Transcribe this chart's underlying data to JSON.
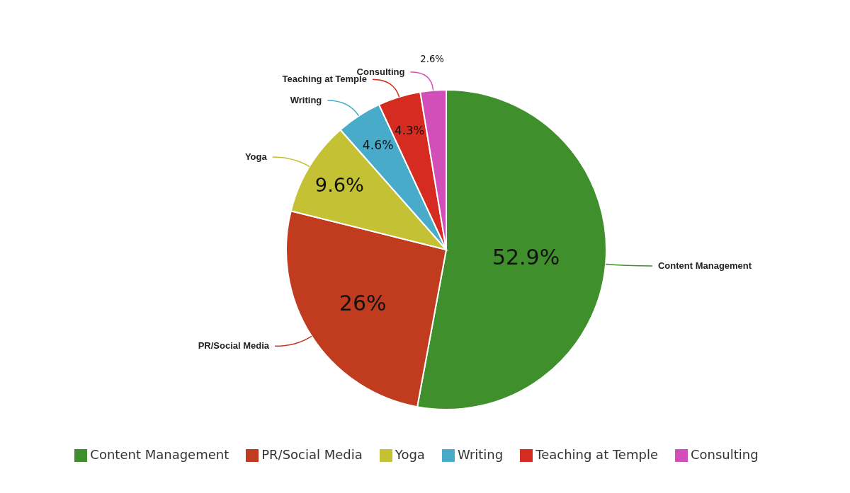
{
  "chart_data": {
    "type": "pie",
    "categories": [
      "Content Management",
      "PR/Social Media",
      "Yoga",
      "Writing",
      "Teaching at Temple",
      "Consulting"
    ],
    "values": [
      52.9,
      26,
      9.6,
      4.6,
      4.3,
      2.6
    ],
    "value_labels": [
      "52.9%",
      "26%",
      "9.6%",
      "4.6%",
      "4.3%",
      "2.6%"
    ],
    "colors": [
      "#3f8f2c",
      "#c13b1f",
      "#c4c234",
      "#47abc9",
      "#d52b20",
      "#d24fb9"
    ],
    "legend": "bottom"
  }
}
